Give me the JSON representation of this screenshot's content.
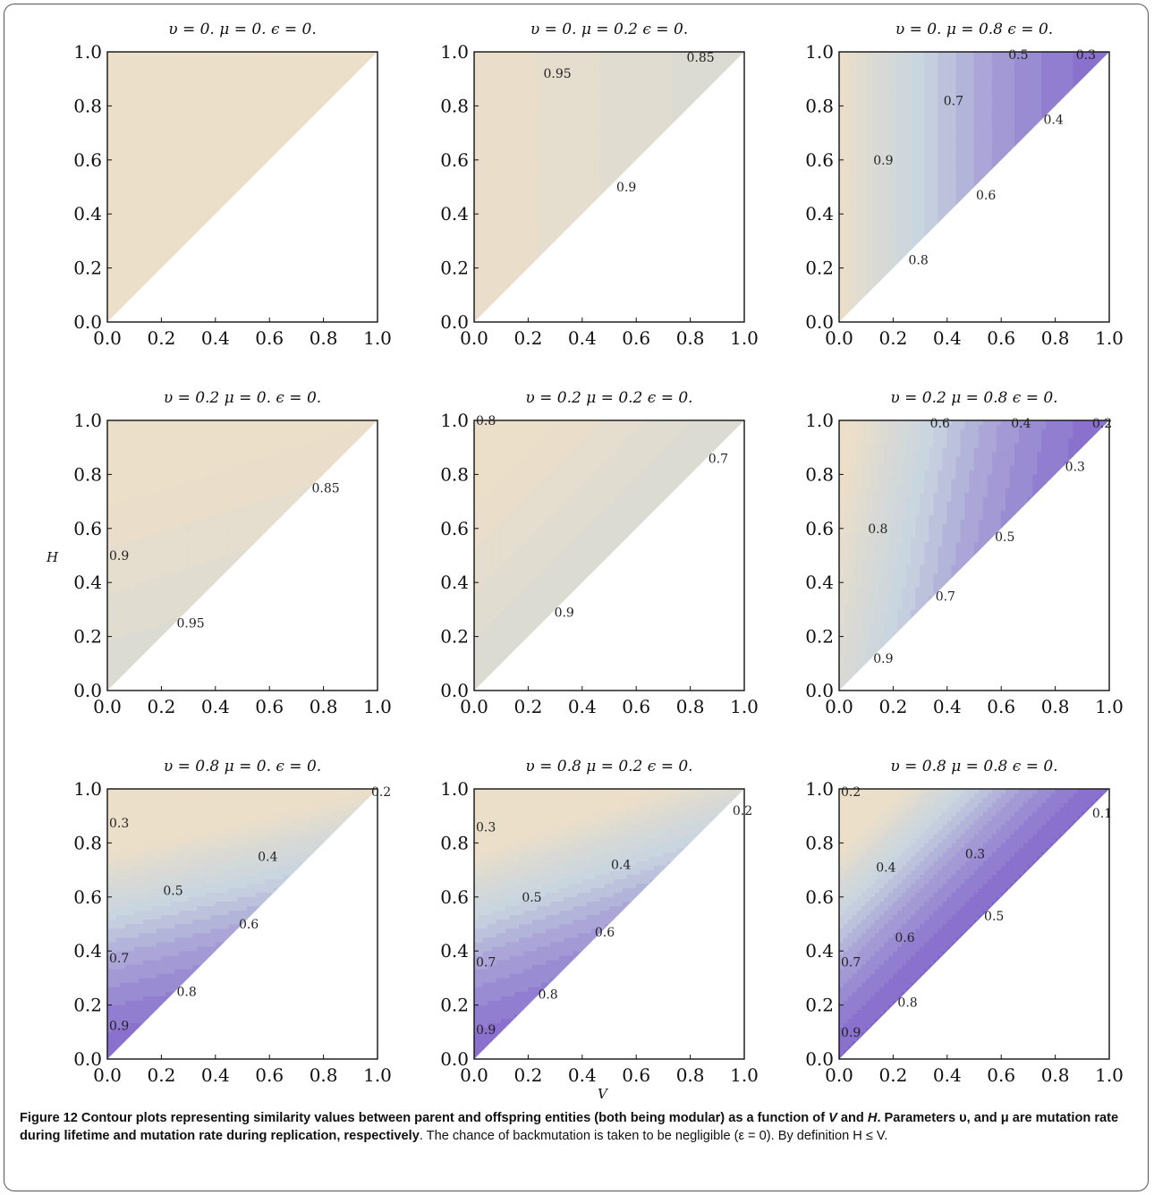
{
  "colors": {
    "low": "#6435c2",
    "mid": "#c8d5e0",
    "high": "#ecdfc9",
    "line": "#555555",
    "axis": "#111111"
  },
  "panels": [
    {
      "title": "υ = 0.  μ = 0.  ϵ = 0.",
      "v": 0.0,
      "mu": 0.0
    },
    {
      "title": "υ = 0.  μ = 0.2  ϵ = 0.",
      "v": 0.0,
      "mu": 0.2
    },
    {
      "title": "υ = 0.  μ = 0.8  ϵ = 0.",
      "v": 0.0,
      "mu": 0.8
    },
    {
      "title": "υ = 0.2  μ = 0.  ϵ = 0.",
      "v": 0.2,
      "mu": 0.0
    },
    {
      "title": "υ = 0.2  μ = 0.2  ϵ = 0.",
      "v": 0.2,
      "mu": 0.2
    },
    {
      "title": "υ = 0.2  μ = 0.8  ϵ = 0.",
      "v": 0.2,
      "mu": 0.8
    },
    {
      "title": "υ = 0.8  μ = 0.  ϵ = 0.",
      "v": 0.8,
      "mu": 0.0
    },
    {
      "title": "υ = 0.8  μ = 0.2  ϵ = 0.",
      "v": 0.8,
      "mu": 0.2
    },
    {
      "title": "υ = 0.8  μ = 0.8  ϵ = 0.",
      "v": 0.8,
      "mu": 0.8
    }
  ],
  "axis_labels": {
    "x": "V",
    "y": "H"
  },
  "chart_data": {
    "type": "contour",
    "xlabel": "V",
    "ylabel": "H",
    "xlim": [
      0,
      1
    ],
    "ylim": [
      0,
      1
    ],
    "ticks": [
      "0.0",
      "0.2",
      "0.4",
      "0.6",
      "0.8",
      "1.0"
    ],
    "contours": [
      {
        "panel": 1,
        "levels": []
      },
      {
        "panel": 2,
        "levels": [
          {
            "value": "0.95",
            "label_at": [
              0.25,
              0.92
            ]
          },
          {
            "value": "0.9",
            "label_at": [
              0.52,
              0.5
            ]
          },
          {
            "value": "0.85",
            "label_at": [
              0.78,
              0.98
            ]
          }
        ]
      },
      {
        "panel": 3,
        "levels": [
          {
            "value": "0.9",
            "label_at": [
              0.12,
              0.6
            ]
          },
          {
            "value": "0.8",
            "label_at": [
              0.25,
              0.23
            ]
          },
          {
            "value": "0.7",
            "label_at": [
              0.38,
              0.82
            ]
          },
          {
            "value": "0.6",
            "label_at": [
              0.5,
              0.47
            ]
          },
          {
            "value": "0.5",
            "label_at": [
              0.62,
              0.99
            ]
          },
          {
            "value": "0.4",
            "label_at": [
              0.75,
              0.75
            ]
          },
          {
            "value": "0.3",
            "label_at": [
              0.87,
              0.99
            ]
          }
        ]
      },
      {
        "panel": 4,
        "levels": [
          {
            "value": "0.95",
            "label_at": [
              0.25,
              0.25
            ]
          },
          {
            "value": "0.9",
            "label_at": [
              0.0,
              0.5
            ]
          },
          {
            "value": "0.85",
            "label_at": [
              0.75,
              0.75
            ]
          }
        ]
      },
      {
        "panel": 5,
        "levels": [
          {
            "value": "0.9",
            "label_at": [
              0.29,
              0.29
            ]
          },
          {
            "value": "0.8",
            "label_at": [
              0.0,
              1.0
            ]
          },
          {
            "value": "0.7",
            "label_at": [
              0.86,
              0.86
            ]
          }
        ]
      },
      {
        "panel": 6,
        "levels": [
          {
            "value": "0.9",
            "label_at": [
              0.12,
              0.12
            ]
          },
          {
            "value": "0.8",
            "label_at": [
              0.1,
              0.6
            ]
          },
          {
            "value": "0.7",
            "label_at": [
              0.35,
              0.35
            ]
          },
          {
            "value": "0.6",
            "label_at": [
              0.33,
              0.99
            ]
          },
          {
            "value": "0.5",
            "label_at": [
              0.57,
              0.57
            ]
          },
          {
            "value": "0.4",
            "label_at": [
              0.63,
              0.99
            ]
          },
          {
            "value": "0.3",
            "label_at": [
              0.83,
              0.83
            ]
          },
          {
            "value": "0.2",
            "label_at": [
              0.93,
              0.99
            ]
          }
        ]
      },
      {
        "panel": 7,
        "levels": [
          {
            "value": "0.2",
            "label_at": [
              0.97,
              0.99
            ]
          },
          {
            "value": "0.3",
            "label_at": [
              0.0,
              0.875
            ]
          },
          {
            "value": "0.4",
            "label_at": [
              0.55,
              0.75
            ]
          },
          {
            "value": "0.5",
            "label_at": [
              0.2,
              0.625
            ]
          },
          {
            "value": "0.6",
            "label_at": [
              0.48,
              0.5
            ]
          },
          {
            "value": "0.7",
            "label_at": [
              0.0,
              0.375
            ]
          },
          {
            "value": "0.8",
            "label_at": [
              0.25,
              0.25
            ]
          },
          {
            "value": "0.9",
            "label_at": [
              0.0,
              0.125
            ]
          }
        ]
      },
      {
        "panel": 8,
        "levels": [
          {
            "value": "0.2",
            "label_at": [
              0.95,
              0.92
            ]
          },
          {
            "value": "0.3",
            "label_at": [
              0.0,
              0.86
            ]
          },
          {
            "value": "0.4",
            "label_at": [
              0.5,
              0.72
            ]
          },
          {
            "value": "0.5",
            "label_at": [
              0.17,
              0.6
            ]
          },
          {
            "value": "0.6",
            "label_at": [
              0.44,
              0.47
            ]
          },
          {
            "value": "0.7",
            "label_at": [
              0.0,
              0.36
            ]
          },
          {
            "value": "0.8",
            "label_at": [
              0.23,
              0.24
            ]
          },
          {
            "value": "0.9",
            "label_at": [
              0.0,
              0.11
            ]
          }
        ]
      },
      {
        "panel": 9,
        "levels": [
          {
            "value": "0.2",
            "label_at": [
              0.0,
              0.99
            ]
          },
          {
            "value": "0.1",
            "label_at": [
              0.93,
              0.91
            ]
          },
          {
            "value": "0.3",
            "label_at": [
              0.46,
              0.76
            ]
          },
          {
            "value": "0.4",
            "label_at": [
              0.13,
              0.71
            ]
          },
          {
            "value": "0.5",
            "label_at": [
              0.53,
              0.53
            ]
          },
          {
            "value": "0.6",
            "label_at": [
              0.2,
              0.45
            ]
          },
          {
            "value": "0.7",
            "label_at": [
              0.0,
              0.36
            ]
          },
          {
            "value": "0.8",
            "label_at": [
              0.21,
              0.21
            ]
          },
          {
            "value": "0.9",
            "label_at": [
              0.0,
              0.1
            ]
          }
        ]
      }
    ]
  },
  "caption": {
    "bold": "Figure 12 Contour plots representing similarity values between parent and offspring entities (both being modular) as a function of ",
    "bold_v": "V",
    "bold_and": " and ",
    "bold_h": "H",
    "bold_rest": ". Parameters υ, and μ are mutation rate during lifetime and mutation rate during replication, respectively",
    "plain": ". The chance of backmutation is taken to be negligible (ε = 0). By definition H ≤ V."
  }
}
